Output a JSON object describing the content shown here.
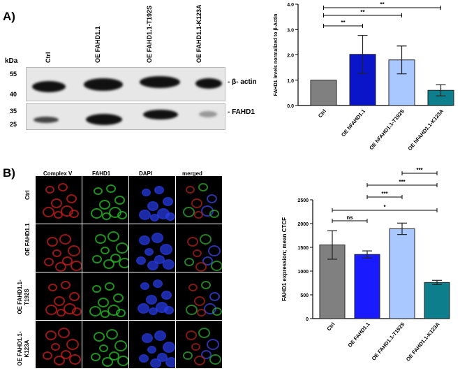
{
  "panelA": {
    "letter": "A)",
    "kda_label": "kDa",
    "markers": [
      "55",
      "40",
      "35",
      "25"
    ],
    "lanes": [
      "Ctrl",
      "OE FAHD1.1",
      "OE FAHD1.1-T192S",
      "OE FAHD1.1-K123A"
    ],
    "band_labels": {
      "actin": "- β- actin",
      "fahd1": "- FAHD1"
    }
  },
  "panelB": {
    "letter": "B)",
    "columns": [
      "Complex V",
      "FAHD1",
      "DAPI",
      "merged"
    ],
    "rows": [
      "Ctrl",
      "OE FAHD1.1",
      "OE FAHD1.1-T192S",
      "OE FAHD1.1-K123A"
    ]
  },
  "colors": {
    "gray": "#808080",
    "darkblue": "#0a14c8",
    "blue": "#1a1aff",
    "lightblue": "#a9c8ff",
    "teal": "#0d7f8c"
  },
  "chart_data": [
    {
      "type": "bar",
      "categories": [
        "Ctrl",
        "OE hFAHD1.1",
        "OE hFAHD1.1-T192S",
        "OE hFAHD1.1-K123A"
      ],
      "values": [
        1.0,
        2.02,
        1.8,
        0.6
      ],
      "errors": [
        0.0,
        0.75,
        0.55,
        0.22
      ],
      "colors": [
        "#808080",
        "#0a14c8",
        "#a9c8ff",
        "#0d7f8c"
      ],
      "ylabel": "FAHD1 levels normalized to β-Actin",
      "ylim": [
        0,
        4
      ],
      "yticks": [
        "0.0",
        "1.0",
        "2.0",
        "3.0",
        "4.0"
      ],
      "significance": [
        {
          "from": 0,
          "to": 1,
          "label": "**"
        },
        {
          "from": 0,
          "to": 2,
          "label": "**"
        },
        {
          "from": 0,
          "to": 3,
          "label": "**"
        }
      ]
    },
    {
      "type": "bar",
      "categories": [
        "Ctrl",
        "OE FAHD1.1",
        "OE FAHD1.1-T192S",
        "OE FAHD1.1-K123A"
      ],
      "values": [
        1550,
        1350,
        1890,
        760
      ],
      "errors": [
        300,
        75,
        120,
        45
      ],
      "colors": [
        "#808080",
        "#1a1aff",
        "#a9c8ff",
        "#0d7f8c"
      ],
      "ylabel": "FAHD1 expression; mean CTCF",
      "ylim": [
        0,
        2500
      ],
      "yticks": [
        "0",
        "500",
        "1000",
        "1500",
        "2000",
        "2500"
      ],
      "significance": [
        {
          "from": 0,
          "to": 1,
          "label": "ns"
        },
        {
          "from": 0,
          "to": 3,
          "label": "*"
        },
        {
          "from": 1,
          "to": 2,
          "label": "***"
        },
        {
          "from": 1,
          "to": 3,
          "label": "***"
        },
        {
          "from": 2,
          "to": 3,
          "label": "***"
        }
      ]
    }
  ]
}
